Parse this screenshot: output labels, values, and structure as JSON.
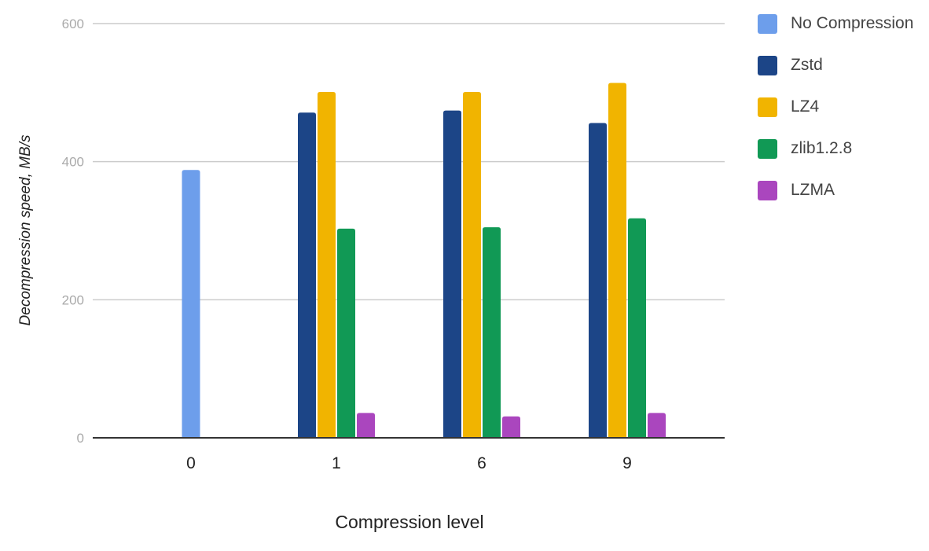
{
  "chart_data": {
    "type": "bar",
    "categories": [
      "0",
      "1",
      "6",
      "9"
    ],
    "series": [
      {
        "name": "No Compression",
        "color": "#6d9eeb",
        "values": [
          388,
          null,
          null,
          null
        ]
      },
      {
        "name": "Zstd",
        "color": "#1c4587",
        "values": [
          null,
          471,
          474,
          456
        ]
      },
      {
        "name": "LZ4",
        "color": "#f1b400",
        "values": [
          null,
          501,
          501,
          514
        ]
      },
      {
        "name": "zlib1.2.8",
        "color": "#119955",
        "values": [
          null,
          303,
          305,
          318
        ]
      },
      {
        "name": "LZMA",
        "color": "#aa46be",
        "values": [
          null,
          36,
          31,
          36
        ]
      }
    ],
    "title": "",
    "xlabel": "Compression level",
    "ylabel": "Decompression speed, MB/s",
    "ylim": [
      0,
      600
    ],
    "yticks": [
      0,
      200,
      400,
      600
    ],
    "grid": true,
    "legend_position": "right"
  }
}
